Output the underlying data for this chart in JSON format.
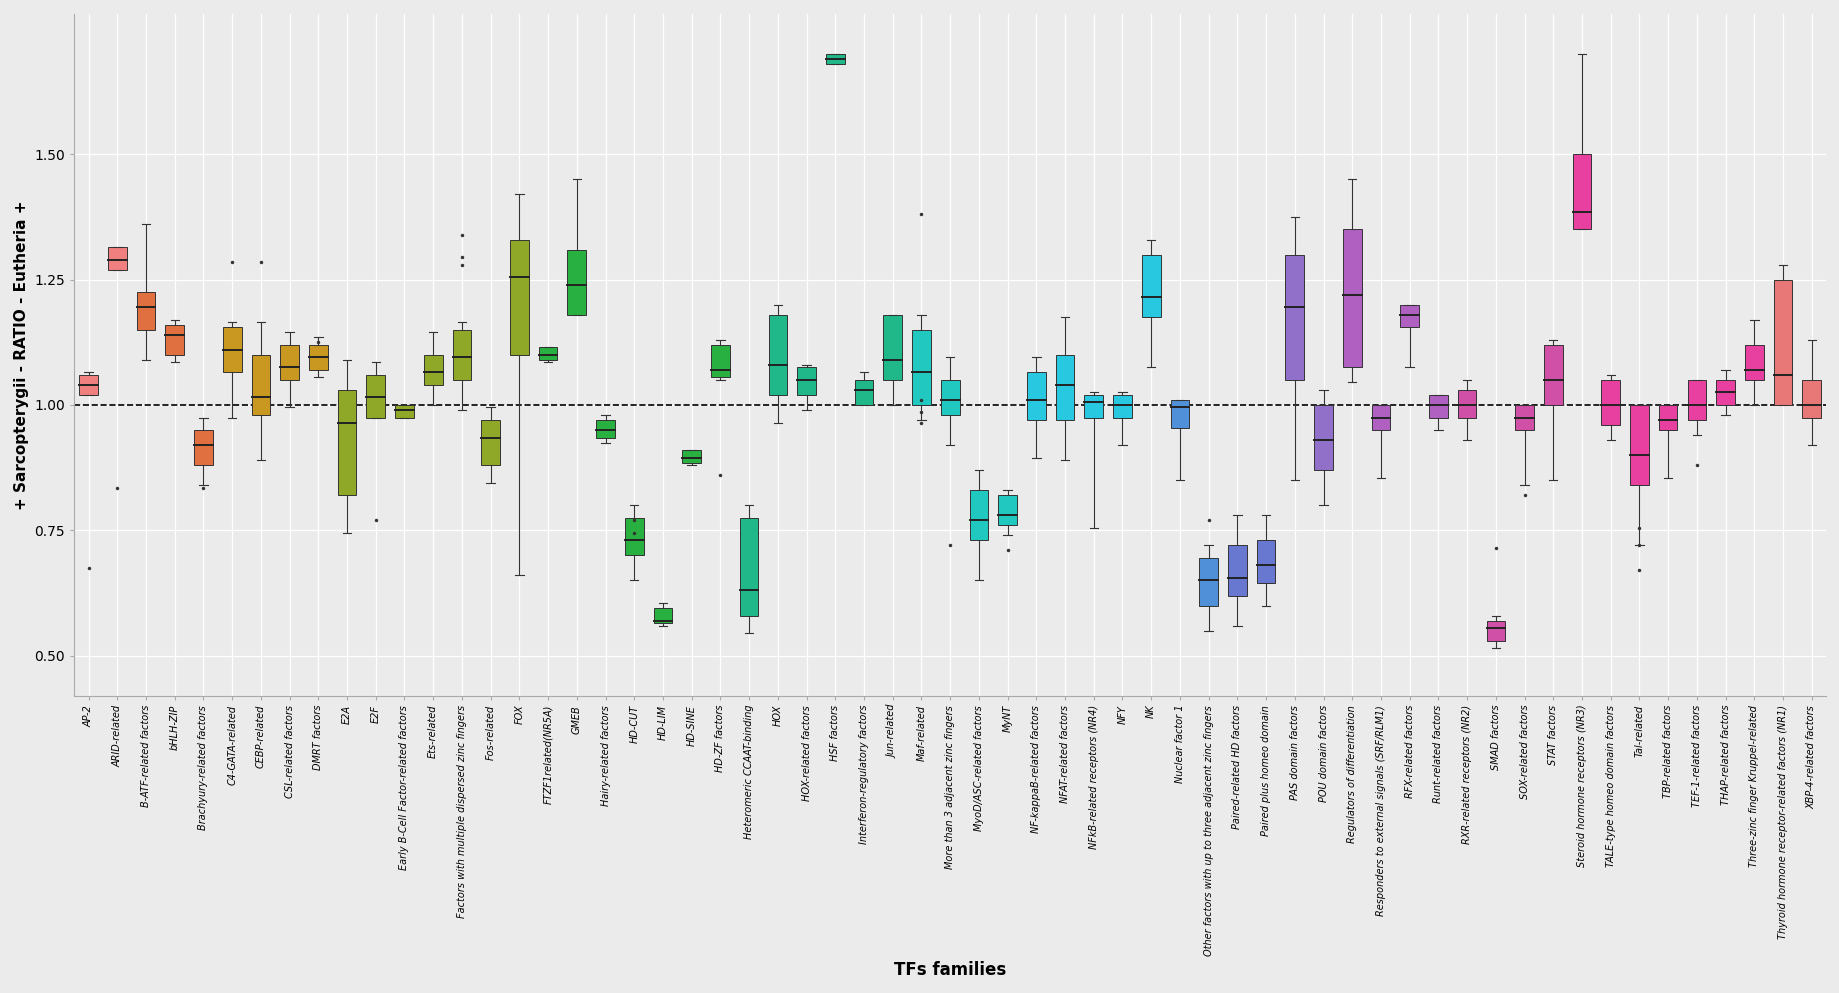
{
  "xlabel": "TFs families",
  "ylabel": "+ Sarcopterygii - RATIO - Eutheria +",
  "ylim": [
    0.42,
    1.78
  ],
  "yticks": [
    0.5,
    0.75,
    1.0,
    1.25,
    1.5
  ],
  "bg_color": "#EBEBEB",
  "boxes": [
    {
      "name": "AP-2",
      "color": "#F08080",
      "q1": 1.02,
      "med": 1.04,
      "q3": 1.06,
      "wlo": 1.02,
      "whi": 1.065,
      "outliers": [
        0.675
      ]
    },
    {
      "name": "ARID-related",
      "color": "#F08080",
      "q1": 1.27,
      "med": 1.29,
      "q3": 1.315,
      "wlo": 1.27,
      "whi": 1.315,
      "outliers": [
        0.835
      ]
    },
    {
      "name": "B-ATF-related factors",
      "color": "#E07040",
      "q1": 1.15,
      "med": 1.195,
      "q3": 1.225,
      "wlo": 1.09,
      "whi": 1.36,
      "outliers": []
    },
    {
      "name": "bHLH-ZIP",
      "color": "#E07040",
      "q1": 1.1,
      "med": 1.14,
      "q3": 1.16,
      "wlo": 1.085,
      "whi": 1.17,
      "outliers": []
    },
    {
      "name": "Brachyury-related factors",
      "color": "#E07040",
      "q1": 0.88,
      "med": 0.92,
      "q3": 0.95,
      "wlo": 0.84,
      "whi": 0.975,
      "outliers": [
        0.835
      ]
    },
    {
      "name": "C4-GATA-related",
      "color": "#C89820",
      "q1": 1.065,
      "med": 1.11,
      "q3": 1.155,
      "wlo": 0.975,
      "whi": 1.165,
      "outliers": [
        1.285
      ]
    },
    {
      "name": "CEBP-related",
      "color": "#C89820",
      "q1": 0.98,
      "med": 1.015,
      "q3": 1.1,
      "wlo": 0.89,
      "whi": 1.165,
      "outliers": [
        1.285
      ]
    },
    {
      "name": "CSL-related factors",
      "color": "#C89820",
      "q1": 1.05,
      "med": 1.075,
      "q3": 1.12,
      "wlo": 0.995,
      "whi": 1.145,
      "outliers": []
    },
    {
      "name": "DMRT factors",
      "color": "#C89820",
      "q1": 1.07,
      "med": 1.095,
      "q3": 1.12,
      "wlo": 1.055,
      "whi": 1.135,
      "outliers": [
        1.125
      ]
    },
    {
      "name": "E2A",
      "color": "#90A828",
      "q1": 0.82,
      "med": 0.965,
      "q3": 1.03,
      "wlo": 0.745,
      "whi": 1.09,
      "outliers": []
    },
    {
      "name": "E2F",
      "color": "#90A828",
      "q1": 0.975,
      "med": 1.015,
      "q3": 1.06,
      "wlo": 0.975,
      "whi": 1.085,
      "outliers": [
        0.77
      ]
    },
    {
      "name": "Early B-Cell Factor-related factors",
      "color": "#90A828",
      "q1": 0.975,
      "med": 0.99,
      "q3": 1.0,
      "wlo": 0.975,
      "whi": 1.0,
      "outliers": []
    },
    {
      "name": "Ets-related",
      "color": "#90A828",
      "q1": 1.04,
      "med": 1.065,
      "q3": 1.1,
      "wlo": 1.0,
      "whi": 1.145,
      "outliers": []
    },
    {
      "name": "Factors with multiple dispersed zinc fingers",
      "color": "#90A828",
      "q1": 1.05,
      "med": 1.095,
      "q3": 1.15,
      "wlo": 0.99,
      "whi": 1.165,
      "outliers": [
        1.28,
        1.295,
        1.34
      ]
    },
    {
      "name": "Fos-related",
      "color": "#90A828",
      "q1": 0.88,
      "med": 0.935,
      "q3": 0.97,
      "wlo": 0.845,
      "whi": 0.995,
      "outliers": []
    },
    {
      "name": "FOX",
      "color": "#90A828",
      "q1": 1.1,
      "med": 1.255,
      "q3": 1.33,
      "wlo": 0.66,
      "whi": 1.42,
      "outliers": []
    },
    {
      "name": "FTZF1related(NR5A)",
      "color": "#28B040",
      "q1": 1.09,
      "med": 1.1,
      "q3": 1.115,
      "wlo": 1.085,
      "whi": 1.115,
      "outliers": []
    },
    {
      "name": "GMEB",
      "color": "#28B040",
      "q1": 1.18,
      "med": 1.24,
      "q3": 1.31,
      "wlo": 1.18,
      "whi": 1.45,
      "outliers": []
    },
    {
      "name": "Hairy-related factors",
      "color": "#28B040",
      "q1": 0.935,
      "med": 0.95,
      "q3": 0.97,
      "wlo": 0.925,
      "whi": 0.98,
      "outliers": []
    },
    {
      "name": "HD-CUT",
      "color": "#28B040",
      "q1": 0.7,
      "med": 0.73,
      "q3": 0.775,
      "wlo": 0.65,
      "whi": 0.8,
      "outliers": [
        0.745,
        0.77
      ]
    },
    {
      "name": "HD-LIM",
      "color": "#28B040",
      "q1": 0.565,
      "med": 0.57,
      "q3": 0.595,
      "wlo": 0.56,
      "whi": 0.605,
      "outliers": []
    },
    {
      "name": "HD-SINE",
      "color": "#28B040",
      "q1": 0.885,
      "med": 0.895,
      "q3": 0.91,
      "wlo": 0.88,
      "whi": 0.91,
      "outliers": []
    },
    {
      "name": "HD-ZF factors",
      "color": "#28B040",
      "q1": 1.055,
      "med": 1.07,
      "q3": 1.12,
      "wlo": 1.05,
      "whi": 1.13,
      "outliers": [
        0.86
      ]
    },
    {
      "name": "Heteromeric CCAAT-binding",
      "color": "#20B888",
      "q1": 0.58,
      "med": 0.63,
      "q3": 0.775,
      "wlo": 0.545,
      "whi": 0.8,
      "outliers": []
    },
    {
      "name": "HOX",
      "color": "#20B888",
      "q1": 1.02,
      "med": 1.08,
      "q3": 1.18,
      "wlo": 0.965,
      "whi": 1.2,
      "outliers": []
    },
    {
      "name": "HOX-related factors",
      "color": "#20B888",
      "q1": 1.02,
      "med": 1.05,
      "q3": 1.075,
      "wlo": 0.99,
      "whi": 1.08,
      "outliers": []
    },
    {
      "name": "HSF factors",
      "color": "#20B888",
      "q1": 1.68,
      "med": 1.69,
      "q3": 1.7,
      "wlo": 1.68,
      "whi": 1.7,
      "outliers": []
    },
    {
      "name": "Interferon-regulatory factors",
      "color": "#20B888",
      "q1": 1.0,
      "med": 1.03,
      "q3": 1.05,
      "wlo": 1.0,
      "whi": 1.065,
      "outliers": []
    },
    {
      "name": "Jun-related",
      "color": "#20B888",
      "q1": 1.05,
      "med": 1.09,
      "q3": 1.18,
      "wlo": 1.0,
      "whi": 1.18,
      "outliers": []
    },
    {
      "name": "Maf-related",
      "color": "#20C8C0",
      "q1": 1.0,
      "med": 1.065,
      "q3": 1.15,
      "wlo": 0.97,
      "whi": 1.18,
      "outliers": [
        0.965,
        0.985,
        1.01,
        1.38
      ]
    },
    {
      "name": "More than 3 adjacent zinc fingers",
      "color": "#20C8C0",
      "q1": 0.98,
      "med": 1.01,
      "q3": 1.05,
      "wlo": 0.92,
      "whi": 1.095,
      "outliers": [
        0.72
      ]
    },
    {
      "name": "MyoD/ASC-related factors",
      "color": "#20C8C0",
      "q1": 0.73,
      "med": 0.77,
      "q3": 0.83,
      "wlo": 0.65,
      "whi": 0.87,
      "outliers": []
    },
    {
      "name": "MyNT",
      "color": "#20C8C0",
      "q1": 0.76,
      "med": 0.78,
      "q3": 0.82,
      "wlo": 0.74,
      "whi": 0.83,
      "outliers": [
        0.71
      ]
    },
    {
      "name": "NF-kappaB-related factors",
      "color": "#28C8E0",
      "q1": 0.97,
      "med": 1.01,
      "q3": 1.065,
      "wlo": 0.895,
      "whi": 1.095,
      "outliers": []
    },
    {
      "name": "NFAT-related factors",
      "color": "#28C8E0",
      "q1": 0.97,
      "med": 1.04,
      "q3": 1.1,
      "wlo": 0.89,
      "whi": 1.175,
      "outliers": []
    },
    {
      "name": "NFkB-related receptors (NR4)",
      "color": "#28C8E0",
      "q1": 0.975,
      "med": 1.005,
      "q3": 1.02,
      "wlo": 0.755,
      "whi": 1.025,
      "outliers": []
    },
    {
      "name": "NFY",
      "color": "#28C8E0",
      "q1": 0.975,
      "med": 1.0,
      "q3": 1.02,
      "wlo": 0.92,
      "whi": 1.025,
      "outliers": []
    },
    {
      "name": "NK",
      "color": "#28C8E0",
      "q1": 1.175,
      "med": 1.215,
      "q3": 1.3,
      "wlo": 1.075,
      "whi": 1.33,
      "outliers": []
    },
    {
      "name": "Nuclear factor 1",
      "color": "#5090D8",
      "q1": 0.955,
      "med": 0.995,
      "q3": 1.01,
      "wlo": 0.85,
      "whi": 1.01,
      "outliers": []
    },
    {
      "name": "Other factors with up to three adjacent zinc fingers",
      "color": "#5090D8",
      "q1": 0.6,
      "med": 0.65,
      "q3": 0.695,
      "wlo": 0.55,
      "whi": 0.72,
      "outliers": [
        0.77
      ]
    },
    {
      "name": "Paired-related HD factors",
      "color": "#6878D0",
      "q1": 0.62,
      "med": 0.655,
      "q3": 0.72,
      "wlo": 0.56,
      "whi": 0.78,
      "outliers": []
    },
    {
      "name": "Paired plus homeo domain",
      "color": "#6878D0",
      "q1": 0.645,
      "med": 0.68,
      "q3": 0.73,
      "wlo": 0.6,
      "whi": 0.78,
      "outliers": []
    },
    {
      "name": "PAS domain factors",
      "color": "#9070C8",
      "q1": 1.05,
      "med": 1.195,
      "q3": 1.3,
      "wlo": 0.85,
      "whi": 1.375,
      "outliers": []
    },
    {
      "name": "POU domain factors",
      "color": "#9070C8",
      "q1": 0.87,
      "med": 0.93,
      "q3": 1.0,
      "wlo": 0.8,
      "whi": 1.03,
      "outliers": []
    },
    {
      "name": "Regulators of differentiation",
      "color": "#B060C0",
      "q1": 1.075,
      "med": 1.22,
      "q3": 1.35,
      "wlo": 1.045,
      "whi": 1.45,
      "outliers": []
    },
    {
      "name": "Responders to external signals (SRF/RLM1)",
      "color": "#B060C0",
      "q1": 0.95,
      "med": 0.975,
      "q3": 1.0,
      "wlo": 0.855,
      "whi": 1.0,
      "outliers": []
    },
    {
      "name": "RFX-related factors",
      "color": "#B060C0",
      "q1": 1.155,
      "med": 1.18,
      "q3": 1.2,
      "wlo": 1.075,
      "whi": 1.2,
      "outliers": []
    },
    {
      "name": "Runt-related factors",
      "color": "#B060C0",
      "q1": 0.975,
      "med": 1.0,
      "q3": 1.02,
      "wlo": 0.95,
      "whi": 1.02,
      "outliers": []
    },
    {
      "name": "RXR-related receptors (NR2)",
      "color": "#D050A8",
      "q1": 0.975,
      "med": 1.0,
      "q3": 1.03,
      "wlo": 0.93,
      "whi": 1.05,
      "outliers": []
    },
    {
      "name": "SMAD factors",
      "color": "#D050A8",
      "q1": 0.53,
      "med": 0.555,
      "q3": 0.57,
      "wlo": 0.515,
      "whi": 0.58,
      "outliers": [
        0.715
      ]
    },
    {
      "name": "SOX-related factors",
      "color": "#D050A8",
      "q1": 0.95,
      "med": 0.975,
      "q3": 1.0,
      "wlo": 0.84,
      "whi": 1.0,
      "outliers": [
        0.82
      ]
    },
    {
      "name": "STAT factors",
      "color": "#D050A8",
      "q1": 1.0,
      "med": 1.05,
      "q3": 1.12,
      "wlo": 0.85,
      "whi": 1.13,
      "outliers": []
    },
    {
      "name": "Steroid hormone receptors (NR3)",
      "color": "#E840A0",
      "q1": 1.35,
      "med": 1.385,
      "q3": 1.5,
      "wlo": 1.35,
      "whi": 1.7,
      "outliers": []
    },
    {
      "name": "TALE-type homeo domain factors",
      "color": "#E840A0",
      "q1": 0.96,
      "med": 1.0,
      "q3": 1.05,
      "wlo": 0.93,
      "whi": 1.06,
      "outliers": []
    },
    {
      "name": "Tal-related",
      "color": "#E840A0",
      "q1": 0.84,
      "med": 0.9,
      "q3": 1.0,
      "wlo": 0.72,
      "whi": 1.0,
      "outliers": [
        0.67,
        0.72,
        0.755
      ]
    },
    {
      "name": "TBP-related factors",
      "color": "#E840A0",
      "q1": 0.95,
      "med": 0.97,
      "q3": 1.0,
      "wlo": 0.855,
      "whi": 1.0,
      "outliers": []
    },
    {
      "name": "TEF-1-related factors",
      "color": "#E840A0",
      "q1": 0.97,
      "med": 1.0,
      "q3": 1.05,
      "wlo": 0.94,
      "whi": 1.05,
      "outliers": [
        0.88
      ]
    },
    {
      "name": "THAP-related factors",
      "color": "#E840A0",
      "q1": 1.0,
      "med": 1.025,
      "q3": 1.05,
      "wlo": 0.98,
      "whi": 1.07,
      "outliers": []
    },
    {
      "name": "Three-zinc finger Kruppel-related",
      "color": "#E840A0",
      "q1": 1.05,
      "med": 1.07,
      "q3": 1.12,
      "wlo": 1.0,
      "whi": 1.17,
      "outliers": []
    },
    {
      "name": "Thyroid hormone receptor-related factors (NR1)",
      "color": "#E87878",
      "q1": 1.0,
      "med": 1.06,
      "q3": 1.25,
      "wlo": 1.0,
      "whi": 1.28,
      "outliers": []
    },
    {
      "name": "XBP-4-related factors",
      "color": "#E87878",
      "q1": 0.975,
      "med": 1.0,
      "q3": 1.05,
      "wlo": 0.92,
      "whi": 1.13,
      "outliers": []
    }
  ]
}
